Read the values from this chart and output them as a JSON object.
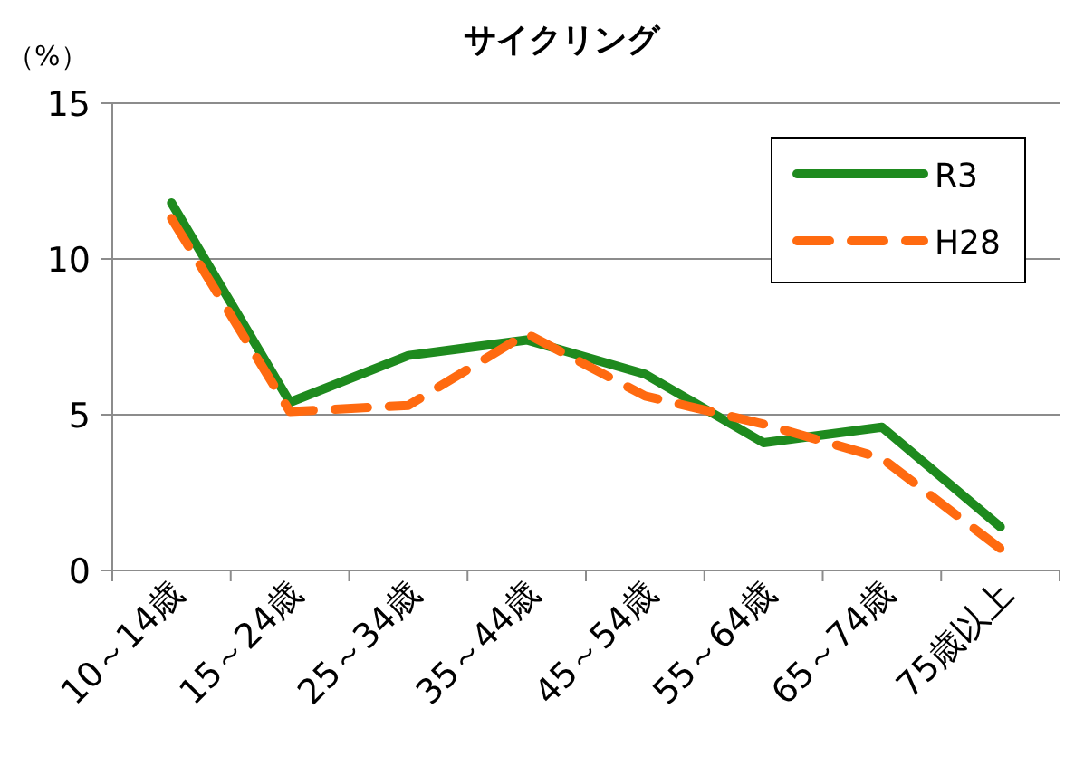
{
  "chart_data": {
    "type": "line",
    "title": "サイクリング",
    "ylabel": "（%）",
    "categories": [
      "10～14歳",
      "15～24歳",
      "25～34歳",
      "35～44歳",
      "45～54歳",
      "55～64歳",
      "65～74歳",
      "75歳以上"
    ],
    "series": [
      {
        "name": "R3",
        "color": "#1e8a1e",
        "line_style": "solid",
        "values": [
          11.8,
          5.4,
          6.9,
          7.4,
          6.3,
          4.1,
          4.6,
          1.4
        ]
      },
      {
        "name": "H28",
        "color": "#ff6a10",
        "line_style": "dashed",
        "values": [
          11.3,
          5.1,
          5.3,
          7.6,
          5.6,
          4.7,
          3.6,
          0.7
        ]
      }
    ],
    "ylim": [
      0,
      15
    ],
    "yticks": [
      0,
      5,
      10,
      15
    ],
    "grid": "y",
    "legend": "top right"
  }
}
